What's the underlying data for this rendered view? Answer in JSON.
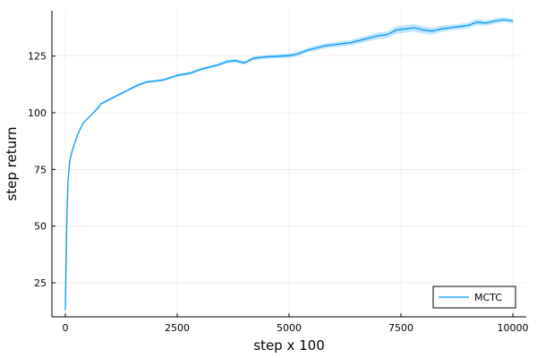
{
  "chart_data": {
    "type": "line",
    "title": "",
    "xlabel": "step x 100",
    "ylabel": "step return",
    "xlim": [
      -300,
      10300
    ],
    "ylim": [
      10,
      145
    ],
    "xticks": [
      0,
      2500,
      5000,
      7500,
      10000
    ],
    "xtick_labels": [
      "0",
      "2500",
      "5000",
      "7500",
      "10000"
    ],
    "yticks": [
      25,
      50,
      75,
      100,
      125
    ],
    "ytick_labels": [
      "25",
      "50",
      "75",
      "100",
      "125"
    ],
    "grid": true,
    "legend_position": "bottom-right",
    "series": [
      {
        "name": "MCTC",
        "color": "#009af9",
        "band": true,
        "x": [
          0,
          30,
          60,
          100,
          150,
          200,
          250,
          300,
          350,
          400,
          500,
          600,
          700,
          800,
          1000,
          1200,
          1400,
          1600,
          1800,
          2000,
          2200,
          2500,
          2800,
          3000,
          3200,
          3400,
          3600,
          3800,
          4000,
          4200,
          4400,
          4600,
          4800,
          5000,
          5200,
          5400,
          5600,
          5800,
          6000,
          6200,
          6400,
          6600,
          6800,
          7000,
          7200,
          7400,
          7600,
          7800,
          8000,
          8200,
          8400,
          8600,
          8800,
          9000,
          9200,
          9400,
          9600,
          9800,
          10000
        ],
        "y": [
          13,
          50,
          70,
          79,
          83,
          86,
          89,
          91.5,
          93.5,
          95.5,
          97.5,
          99.5,
          101.5,
          104,
          106,
          108,
          110,
          112,
          113.5,
          114,
          114.5,
          116.5,
          117.5,
          119,
          120,
          121,
          122.5,
          123,
          122,
          124,
          124.5,
          124.8,
          125,
          125.2,
          126,
          127.5,
          128.5,
          129.5,
          130,
          130.5,
          131,
          132,
          133,
          134,
          134.5,
          136.5,
          137,
          137.5,
          136.5,
          136,
          137,
          137.5,
          138,
          138.5,
          140,
          139.5,
          140.5,
          141,
          140.5
        ],
        "band_halfwidth": [
          0.3,
          0.4,
          0.4,
          0.4,
          0.4,
          0.4,
          0.4,
          0.4,
          0.4,
          0.4,
          0.4,
          0.4,
          0.5,
          0.5,
          0.5,
          0.5,
          0.5,
          0.6,
          0.6,
          0.6,
          0.6,
          0.6,
          0.7,
          0.7,
          0.7,
          0.7,
          0.8,
          0.8,
          0.8,
          0.9,
          0.9,
          0.9,
          1.0,
          1.0,
          1.0,
          1.0,
          1.1,
          1.1,
          1.1,
          1.2,
          1.2,
          1.3,
          1.3,
          1.4,
          1.5,
          1.6,
          1.7,
          1.7,
          1.6,
          1.5,
          1.4,
          1.3,
          1.2,
          1.2,
          1.3,
          1.2,
          1.1,
          1.1,
          1.0
        ]
      }
    ]
  }
}
